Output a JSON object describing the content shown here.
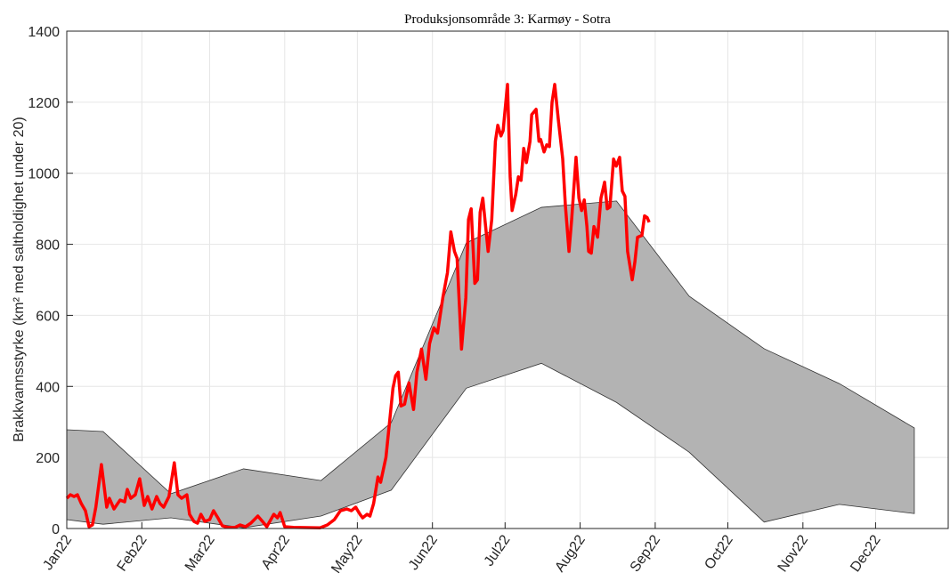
{
  "chart_data": {
    "type": "line",
    "title": "Produksjonsområde 3: Karmøy - Sotra",
    "ylabel": "Brakkvannsstyrke (km² med saltholdighet under 20)",
    "xlim": [
      0,
      364
    ],
    "xticks": [
      {
        "value": 0,
        "label": "Jan22"
      },
      {
        "value": 31,
        "label": "Feb22"
      },
      {
        "value": 59,
        "label": "Mar22"
      },
      {
        "value": 90,
        "label": "Apr22"
      },
      {
        "value": 120,
        "label": "May22"
      },
      {
        "value": 151,
        "label": "Jun22"
      },
      {
        "value": 181,
        "label": "Jul22"
      },
      {
        "value": 212,
        "label": "Aug22"
      },
      {
        "value": 243,
        "label": "Sep22"
      },
      {
        "value": 273,
        "label": "Oct22"
      },
      {
        "value": 304,
        "label": "Nov22"
      },
      {
        "value": 334,
        "label": "Dec22"
      }
    ],
    "ylim": [
      0,
      1400
    ],
    "yticks": [
      0,
      200,
      400,
      600,
      800,
      1000,
      1200,
      1400
    ],
    "grid": true,
    "band": {
      "color": "#b3b3b3",
      "x": [
        0,
        15,
        43,
        73,
        105,
        134,
        165,
        196,
        227,
        257,
        288,
        319,
        350
      ],
      "upper": [
        278,
        273,
        98,
        168,
        135,
        298,
        804,
        904,
        922,
        654,
        506,
        408,
        283
      ],
      "lower": [
        25,
        12,
        30,
        2,
        35,
        108,
        395,
        465,
        355,
        215,
        18,
        68,
        42
      ]
    },
    "line": {
      "color": "#ff0000",
      "x": [
        0,
        1.5,
        3,
        4.4,
        6,
        7.7,
        9.2,
        10.6,
        12,
        14.3,
        16.5,
        17.6,
        19.5,
        22,
        23.9,
        25,
        26.4,
        28.3,
        30.1,
        32,
        33.4,
        35.2,
        37.1,
        38.5,
        40,
        42.2,
        44.4,
        45.9,
        47.4,
        49.6,
        50.7,
        52.5,
        54,
        55.4,
        57,
        59,
        60.6,
        62.4,
        64.2,
        66.4,
        69.4,
        71.6,
        73.8,
        76,
        78.9,
        80.8,
        82.6,
        85.5,
        87,
        88.1,
        90,
        93.6,
        104.6,
        107.6,
        110.5,
        113,
        115.6,
        117.5,
        119.3,
        121.1,
        122.2,
        124,
        125.2,
        126.7,
        128.5,
        129.6,
        131.8,
        133.3,
        134.7,
        135.8,
        136.9,
        138,
        139.5,
        141.3,
        143.2,
        144.6,
        146.5,
        148.3,
        149.8,
        151.6,
        153.1,
        155.3,
        157.2,
        158.6,
        160.1,
        161.2,
        163,
        164.8,
        165.9,
        167,
        168.5,
        169.6,
        170.7,
        171.8,
        174,
        175.5,
        177,
        178,
        179.3,
        180.2,
        181.3,
        182,
        183.1,
        183.9,
        185.4,
        186.5,
        187.6,
        188.7,
        189.8,
        191.3,
        192,
        193.8,
        195,
        195.7,
        197.1,
        198.2,
        199.3,
        200.4,
        201.5,
        203,
        204.8,
        205.9,
        207.4,
        208.5,
        210.3,
        211.5,
        212.6,
        213.7,
        214.8,
        215.5,
        216.6,
        217.7,
        219.2,
        220.6,
        222.1,
        223.2,
        224.3,
        225.8,
        226.9,
        228.3,
        229.4,
        230.5,
        231.6,
        233.5,
        234.6,
        235.7,
        237.5,
        238.6,
        239.7,
        240.5
      ],
      "values": [
        85,
        95,
        90,
        95,
        70,
        50,
        5,
        10,
        60,
        180,
        60,
        85,
        55,
        80,
        75,
        110,
        85,
        95,
        140,
        65,
        90,
        55,
        90,
        70,
        60,
        90,
        185,
        95,
        85,
        95,
        40,
        20,
        15,
        40,
        20,
        25,
        50,
        30,
        8,
        3,
        3,
        10,
        5,
        15,
        35,
        20,
        5,
        40,
        30,
        45,
        5,
        3,
        2,
        10,
        25,
        50,
        55,
        50,
        60,
        40,
        30,
        40,
        35,
        70,
        145,
        130,
        200,
        300,
        395,
        430,
        440,
        345,
        350,
        410,
        335,
        440,
        505,
        420,
        520,
        565,
        550,
        650,
        720,
        835,
        780,
        760,
        505,
        650,
        870,
        900,
        690,
        700,
        890,
        930,
        780,
        870,
        1090,
        1135,
        1105,
        1120,
        1200,
        1250,
        990,
        895,
        940,
        990,
        980,
        1070,
        1030,
        1090,
        1165,
        1180,
        1090,
        1095,
        1060,
        1080,
        1075,
        1200,
        1250,
        1150,
        1040,
        910,
        780,
        870,
        1045,
        930,
        895,
        925,
        850,
        780,
        775,
        850,
        820,
        930,
        975,
        900,
        905,
        1040,
        1020,
        1045,
        950,
        935,
        780,
        700,
        750,
        820,
        825,
        880,
        875,
        862
      ]
    }
  }
}
